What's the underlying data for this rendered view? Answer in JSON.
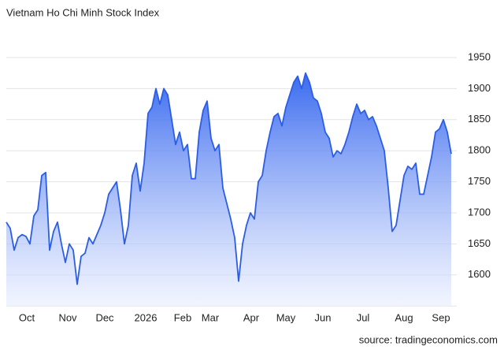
{
  "chart_data": {
    "type": "area",
    "title": "Vietnam Ho Chi Minh Stock Index",
    "source": "source: tradingeconomics.com",
    "series": [
      {
        "name": "Vietnam Ho Chi Minh Stock Index",
        "color": "#2c5de5",
        "values": [
          1685,
          1675,
          1640,
          1660,
          1665,
          1662,
          1650,
          1695,
          1705,
          1760,
          1765,
          1640,
          1670,
          1685,
          1650,
          1620,
          1650,
          1640,
          1585,
          1630,
          1635,
          1660,
          1650,
          1665,
          1680,
          1700,
          1730,
          1740,
          1750,
          1705,
          1650,
          1680,
          1760,
          1780,
          1735,
          1780,
          1860,
          1870,
          1900,
          1875,
          1900,
          1890,
          1850,
          1810,
          1830,
          1800,
          1810,
          1755,
          1755,
          1830,
          1865,
          1880,
          1820,
          1800,
          1810,
          1740,
          1715,
          1690,
          1660,
          1590,
          1650,
          1680,
          1700,
          1690,
          1750,
          1760,
          1800,
          1830,
          1855,
          1860,
          1840,
          1870,
          1890,
          1910,
          1920,
          1900,
          1925,
          1910,
          1885,
          1880,
          1860,
          1830,
          1820,
          1790,
          1800,
          1795,
          1810,
          1830,
          1855,
          1875,
          1860,
          1865,
          1850,
          1855,
          1840,
          1820,
          1800,
          1740,
          1670,
          1680,
          1720,
          1760,
          1775,
          1770,
          1780,
          1730,
          1730,
          1760,
          1790,
          1830,
          1835,
          1850,
          1830,
          1795
        ]
      }
    ],
    "xlim": [
      0,
      113
    ],
    "xticks": [
      {
        "value": 5.2,
        "label": "Oct"
      },
      {
        "value": 15.6,
        "label": "Nov"
      },
      {
        "value": 25,
        "label": "Dec"
      },
      {
        "value": 35.4,
        "label": "2026"
      },
      {
        "value": 44.8,
        "label": "Feb"
      },
      {
        "value": 51.8,
        "label": "Mar"
      },
      {
        "value": 62.2,
        "label": "Apr"
      },
      {
        "value": 71,
        "label": "May"
      },
      {
        "value": 80.4,
        "label": "Jun"
      },
      {
        "value": 90.6,
        "label": "Jul"
      },
      {
        "value": 101,
        "label": "Aug"
      },
      {
        "value": 110.4,
        "label": "Sep"
      }
    ],
    "ylim": [
      1550,
      2000
    ],
    "yticks": [
      1600,
      1650,
      1700,
      1750,
      1800,
      1850,
      1900,
      1950
    ],
    "grid": true
  }
}
